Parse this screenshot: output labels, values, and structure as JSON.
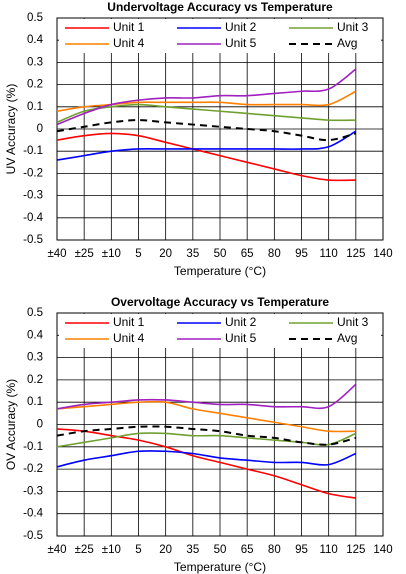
{
  "chart_data": [
    {
      "type": "line",
      "title": "Undervoltage Accuracy vs Temperature",
      "xlabel": "Temperature (°C)",
      "ylabel": "UV Accuracy (%)",
      "xlim": [
        -40,
        140
      ],
      "ylim": [
        -0.5,
        0.5
      ],
      "x_ticks": [
        -40,
        -25,
        -10,
        5,
        20,
        35,
        50,
        65,
        80,
        95,
        110,
        125,
        140
      ],
      "x_tick_labels": [
        "±40",
        "±25",
        "±10",
        "5",
        "20",
        "35",
        "50",
        "65",
        "80",
        "95",
        "110",
        "125",
        "140"
      ],
      "y_ticks": [
        -0.5,
        -0.4,
        -0.3,
        -0.2,
        -0.1,
        0,
        0.1,
        0.2,
        0.3,
        0.4,
        0.5
      ],
      "y_tick_labels": [
        "-0.5",
        "-0.4",
        "-0.3",
        "-0.2",
        "-0.1",
        "0",
        "0.1",
        "0.2",
        "0.3",
        "0.4",
        "0.5"
      ],
      "grid": true,
      "legend_position": "top",
      "x": [
        -40,
        -25,
        -10,
        5,
        20,
        35,
        50,
        65,
        80,
        95,
        110,
        125
      ],
      "series": [
        {
          "name": "Unit 1",
          "color": "#ff0000",
          "dash": "solid",
          "values": [
            -0.05,
            -0.03,
            -0.02,
            -0.03,
            -0.06,
            -0.09,
            -0.12,
            -0.15,
            -0.18,
            -0.21,
            -0.23,
            -0.23
          ]
        },
        {
          "name": "Unit 2",
          "color": "#0000ff",
          "dash": "solid",
          "values": [
            -0.14,
            -0.12,
            -0.1,
            -0.09,
            -0.09,
            -0.09,
            -0.09,
            -0.09,
            -0.09,
            -0.09,
            -0.08,
            -0.01
          ]
        },
        {
          "name": "Unit 3",
          "color": "#70a030",
          "dash": "solid",
          "values": [
            0.03,
            0.08,
            0.1,
            0.11,
            0.1,
            0.09,
            0.08,
            0.07,
            0.06,
            0.05,
            0.04,
            0.04
          ]
        },
        {
          "name": "Unit 4",
          "color": "#ff8000",
          "dash": "solid",
          "values": [
            0.08,
            0.1,
            0.11,
            0.12,
            0.12,
            0.12,
            0.12,
            0.11,
            0.11,
            0.11,
            0.11,
            0.17
          ]
        },
        {
          "name": "Unit 5",
          "color": "#a020c0",
          "dash": "solid",
          "values": [
            0.02,
            0.07,
            0.11,
            0.13,
            0.14,
            0.14,
            0.15,
            0.15,
            0.16,
            0.17,
            0.18,
            0.27
          ]
        },
        {
          "name": "Avg",
          "color": "#000000",
          "dash": "dashed",
          "values": [
            -0.01,
            0.01,
            0.03,
            0.04,
            0.03,
            0.02,
            0.01,
            0.0,
            -0.01,
            -0.03,
            -0.05,
            -0.02
          ]
        }
      ]
    },
    {
      "type": "line",
      "title": "Overvoltage Accuracy vs Temperature",
      "xlabel": "Temperature (°C)",
      "ylabel": "OV Accuracy (%)",
      "xlim": [
        -40,
        140
      ],
      "ylim": [
        -0.5,
        0.5
      ],
      "x_ticks": [
        -40,
        -25,
        -10,
        5,
        20,
        35,
        50,
        65,
        80,
        95,
        110,
        125,
        140
      ],
      "x_tick_labels": [
        "±40",
        "±25",
        "±10",
        "5",
        "20",
        "35",
        "50",
        "65",
        "80",
        "95",
        "110",
        "125",
        "140"
      ],
      "y_ticks": [
        -0.5,
        -0.4,
        -0.3,
        -0.2,
        -0.1,
        0,
        0.1,
        0.2,
        0.3,
        0.4,
        0.5
      ],
      "y_tick_labels": [
        "-0.5",
        "-0.4",
        "-0.3",
        "-0.2",
        "-0.1",
        "0",
        "0.1",
        "0.2",
        "0.3",
        "0.4",
        "0.5"
      ],
      "grid": true,
      "legend_position": "top",
      "x": [
        -40,
        -25,
        -10,
        5,
        20,
        35,
        50,
        65,
        80,
        95,
        110,
        125
      ],
      "series": [
        {
          "name": "Unit 1",
          "color": "#ff0000",
          "dash": "solid",
          "values": [
            -0.02,
            -0.03,
            -0.05,
            -0.07,
            -0.1,
            -0.14,
            -0.17,
            -0.2,
            -0.23,
            -0.27,
            -0.31,
            -0.33
          ]
        },
        {
          "name": "Unit 2",
          "color": "#0000ff",
          "dash": "solid",
          "values": [
            -0.19,
            -0.16,
            -0.14,
            -0.12,
            -0.12,
            -0.13,
            -0.15,
            -0.16,
            -0.17,
            -0.17,
            -0.18,
            -0.13
          ]
        },
        {
          "name": "Unit 3",
          "color": "#70a030",
          "dash": "solid",
          "values": [
            -0.1,
            -0.08,
            -0.06,
            -0.04,
            -0.04,
            -0.05,
            -0.05,
            -0.06,
            -0.07,
            -0.08,
            -0.09,
            -0.04
          ]
        },
        {
          "name": "Unit 4",
          "color": "#ff8000",
          "dash": "solid",
          "values": [
            0.07,
            0.08,
            0.09,
            0.1,
            0.1,
            0.07,
            0.05,
            0.03,
            0.01,
            -0.01,
            -0.03,
            -0.03
          ]
        },
        {
          "name": "Unit 5",
          "color": "#a020c0",
          "dash": "solid",
          "values": [
            0.07,
            0.09,
            0.1,
            0.11,
            0.11,
            0.1,
            0.09,
            0.09,
            0.08,
            0.08,
            0.08,
            0.18
          ]
        },
        {
          "name": "Avg",
          "color": "#000000",
          "dash": "dashed",
          "values": [
            -0.05,
            -0.03,
            -0.02,
            -0.01,
            -0.01,
            -0.02,
            -0.03,
            -0.05,
            -0.06,
            -0.08,
            -0.09,
            -0.06
          ]
        }
      ]
    }
  ]
}
